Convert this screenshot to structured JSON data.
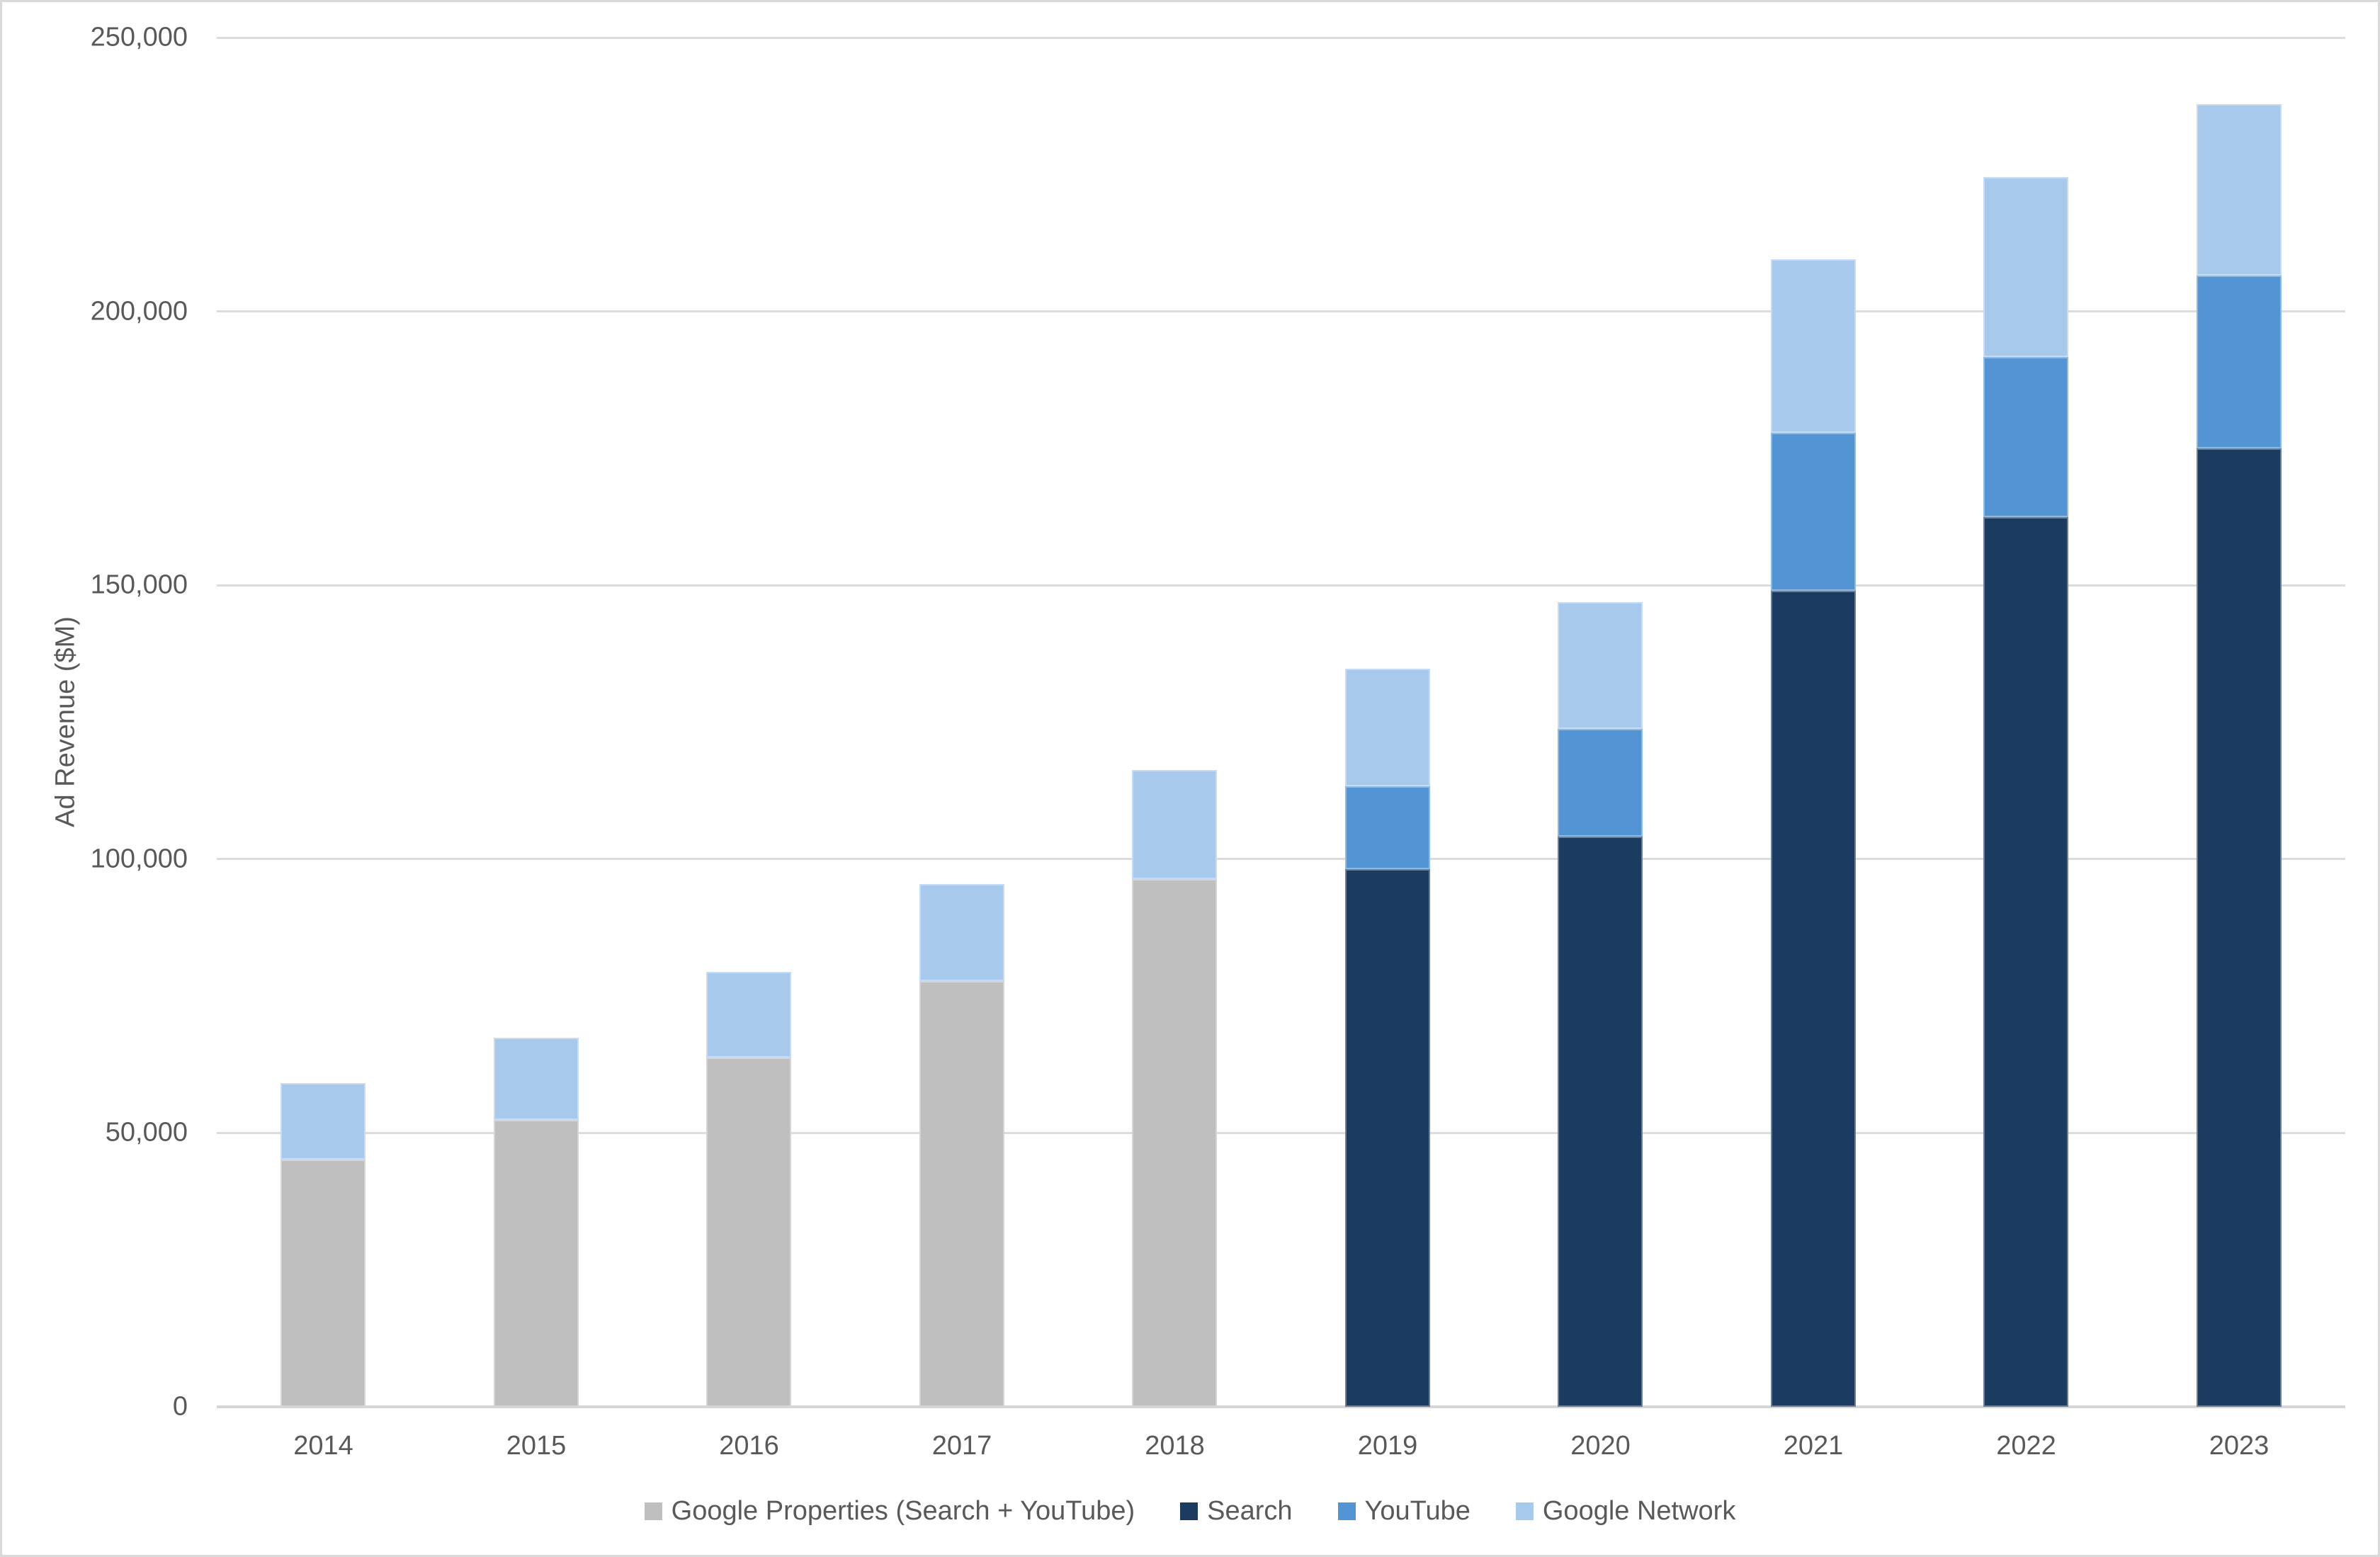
{
  "chart_data": {
    "type": "bar",
    "stacked": true,
    "title": "",
    "xlabel": "",
    "ylabel": "Ad Revenue ($M)",
    "categories": [
      "2014",
      "2015",
      "2016",
      "2017",
      "2018",
      "2019",
      "2020",
      "2021",
      "2022",
      "2023"
    ],
    "series": [
      {
        "name": "Google Properties (Search + YouTube)",
        "color": "#bfbfbf",
        "values": [
          45085,
          52357,
          63785,
          77788,
          96336,
          null,
          null,
          null,
          null,
          null
        ]
      },
      {
        "name": "Search",
        "color": "#1b3c60",
        "values": [
          null,
          null,
          null,
          null,
          null,
          98115,
          104062,
          148951,
          162450,
          175033
        ]
      },
      {
        "name": "YouTube",
        "color": "#5294d4",
        "values": [
          null,
          null,
          null,
          null,
          null,
          15149,
          19772,
          28845,
          29243,
          31510
        ]
      },
      {
        "name": "Google Network",
        "color": "#a6c9ec",
        "values": [
          13971,
          15033,
          15598,
          17616,
          19982,
          21547,
          23090,
          31701,
          32780,
          31312
        ]
      }
    ],
    "ylim": [
      0,
      250000
    ],
    "ytick_step": 50000,
    "ytick_labels": [
      "0",
      "50,000",
      "100,000",
      "150,000",
      "200,000",
      "250,000"
    ],
    "grid": true,
    "legend_position": "bottom"
  },
  "colors": {
    "background": "#ffffff",
    "frame_border": "#d9d9d9",
    "gridline": "#dcdcdc",
    "axis_line": "#d6d6d6",
    "text": "#595959"
  }
}
